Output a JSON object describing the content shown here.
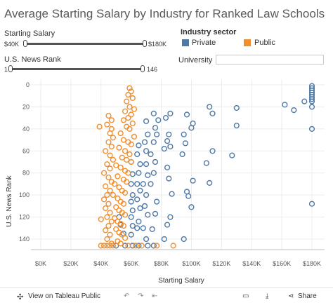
{
  "title": "Average Starting Salary by Industry for Ranked Law Schools",
  "filters": {
    "salary": {
      "label": "Starting Salary",
      "min_label": "$40K",
      "max_label": "$180K"
    },
    "rank": {
      "label": "U.S. News Rank",
      "min_label": "1",
      "max_label": "146"
    },
    "university": {
      "label": "University",
      "value": ""
    }
  },
  "legend": {
    "title": "Industry sector",
    "items": [
      {
        "label": "Private",
        "color": "#4e79a7"
      },
      {
        "label": "Public",
        "color": "#f28e2b"
      }
    ]
  },
  "footer": {
    "view_label": "View on Tableau Public",
    "share_label": "Share"
  },
  "chart_data": {
    "type": "scatter",
    "xlabel": "Starting Salary",
    "ylabel": "U.S. News Rank",
    "xlim": [
      0,
      180000
    ],
    "ylim": [
      0,
      150
    ],
    "y_reversed": true,
    "x_ticks": [
      "$0K",
      "$20K",
      "$40K",
      "$60K",
      "$80K",
      "$100K",
      "$120K",
      "$140K",
      "$160K",
      "$180K"
    ],
    "y_ticks": [
      "0",
      "20",
      "40",
      "60",
      "80",
      "100",
      "120",
      "140"
    ],
    "series": [
      {
        "name": "Private",
        "color": "#4e79a7",
        "points": [
          [
            180000,
            1
          ],
          [
            180000,
            3
          ],
          [
            180000,
            5
          ],
          [
            180000,
            7
          ],
          [
            180000,
            9
          ],
          [
            180000,
            11
          ],
          [
            180000,
            13
          ],
          [
            180000,
            15
          ],
          [
            180000,
            20
          ],
          [
            180000,
            40
          ],
          [
            180000,
            108
          ],
          [
            162000,
            18
          ],
          [
            168000,
            23
          ],
          [
            175000,
            15
          ],
          [
            112000,
            20
          ],
          [
            114000,
            26
          ],
          [
            130000,
            21
          ],
          [
            130000,
            37
          ],
          [
            127000,
            64
          ],
          [
            114000,
            60
          ],
          [
            110000,
            71
          ],
          [
            112000,
            89
          ],
          [
            97000,
            27
          ],
          [
            100000,
            39
          ],
          [
            101000,
            35
          ],
          [
            96000,
            53
          ],
          [
            95000,
            45
          ],
          [
            94000,
            63
          ],
          [
            101000,
            87
          ],
          [
            97000,
            97
          ],
          [
            98000,
            101
          ],
          [
            100000,
            111
          ],
          [
            95000,
            140
          ],
          [
            86000,
            26
          ],
          [
            83000,
            30
          ],
          [
            85000,
            45
          ],
          [
            84000,
            51
          ],
          [
            86000,
            56
          ],
          [
            82000,
            58
          ],
          [
            84000,
            75
          ],
          [
            85000,
            85
          ],
          [
            87000,
            99
          ],
          [
            86000,
            120
          ],
          [
            84000,
            127
          ],
          [
            82000,
            140
          ],
          [
            75000,
            26
          ],
          [
            78000,
            32
          ],
          [
            76000,
            39
          ],
          [
            77000,
            45
          ],
          [
            75000,
            52
          ],
          [
            73000,
            63
          ],
          [
            76000,
            70
          ],
          [
            75000,
            80
          ],
          [
            73000,
            90
          ],
          [
            77000,
            106
          ],
          [
            76000,
            117
          ],
          [
            74000,
            131
          ],
          [
            75000,
            146
          ],
          [
            70000,
            33
          ],
          [
            71000,
            45
          ],
          [
            69000,
            52
          ],
          [
            70000,
            60
          ],
          [
            70000,
            72
          ],
          [
            71000,
            82
          ],
          [
            68000,
            90
          ],
          [
            70000,
            100
          ],
          [
            69000,
            110
          ],
          [
            71000,
            118
          ],
          [
            68000,
            130
          ],
          [
            70000,
            140
          ],
          [
            71000,
            146
          ],
          [
            65000,
            55
          ],
          [
            64000,
            63
          ],
          [
            66000,
            72
          ],
          [
            65000,
            80
          ],
          [
            64000,
            90
          ],
          [
            66000,
            96
          ],
          [
            64000,
            104
          ],
          [
            66000,
            112
          ],
          [
            65000,
            124
          ],
          [
            64000,
            130
          ],
          [
            65000,
            146
          ],
          [
            60000,
            70
          ],
          [
            61000,
            81
          ],
          [
            60000,
            90
          ],
          [
            61000,
            100
          ],
          [
            60000,
            106
          ],
          [
            61000,
            114
          ],
          [
            60000,
            120
          ],
          [
            61000,
            128
          ],
          [
            60000,
            136
          ],
          [
            61000,
            146
          ],
          [
            52000,
            120
          ],
          [
            53000,
            127
          ],
          [
            55000,
            135
          ],
          [
            56000,
            146
          ],
          [
            50000,
            146
          ]
        ]
      },
      {
        "name": "Public",
        "color": "#f28e2b",
        "points": [
          [
            59000,
            3
          ],
          [
            60000,
            6
          ],
          [
            58000,
            9
          ],
          [
            61000,
            12
          ],
          [
            57000,
            15
          ],
          [
            59000,
            20
          ],
          [
            62000,
            22
          ],
          [
            56000,
            24
          ],
          [
            60000,
            27
          ],
          [
            58000,
            30
          ],
          [
            55000,
            32
          ],
          [
            61000,
            35
          ],
          [
            57000,
            38
          ],
          [
            59000,
            40
          ],
          [
            53000,
            44
          ],
          [
            62000,
            47
          ],
          [
            55000,
            50
          ],
          [
            58000,
            52
          ],
          [
            60000,
            54
          ],
          [
            52000,
            57
          ],
          [
            56000,
            60
          ],
          [
            59000,
            63
          ],
          [
            54000,
            66
          ],
          [
            57000,
            68
          ],
          [
            60000,
            70
          ],
          [
            50000,
            73
          ],
          [
            53000,
            75
          ],
          [
            56000,
            78
          ],
          [
            58000,
            80
          ],
          [
            51000,
            83
          ],
          [
            55000,
            86
          ],
          [
            57000,
            88
          ],
          [
            49000,
            90
          ],
          [
            52000,
            93
          ],
          [
            54000,
            96
          ],
          [
            56000,
            98
          ],
          [
            48000,
            100
          ],
          [
            51000,
            103
          ],
          [
            53000,
            106
          ],
          [
            55000,
            108
          ],
          [
            50000,
            111
          ],
          [
            52000,
            114
          ],
          [
            54000,
            116
          ],
          [
            56000,
            118
          ],
          [
            49000,
            121
          ],
          [
            51000,
            124
          ],
          [
            53000,
            126
          ],
          [
            55000,
            128
          ],
          [
            50000,
            131
          ],
          [
            52000,
            134
          ],
          [
            54000,
            136
          ],
          [
            56000,
            139
          ],
          [
            51000,
            142
          ],
          [
            53000,
            144
          ],
          [
            45000,
            28
          ],
          [
            47000,
            32
          ],
          [
            44000,
            36
          ],
          [
            47000,
            40
          ],
          [
            46000,
            44
          ],
          [
            48000,
            48
          ],
          [
            45000,
            52
          ],
          [
            47000,
            56
          ],
          [
            43000,
            60
          ],
          [
            46000,
            64
          ],
          [
            48000,
            68
          ],
          [
            44000,
            72
          ],
          [
            46000,
            76
          ],
          [
            42000,
            80
          ],
          [
            45000,
            84
          ],
          [
            47000,
            88
          ],
          [
            43000,
            92
          ],
          [
            46000,
            96
          ],
          [
            44000,
            100
          ],
          [
            42000,
            104
          ],
          [
            45000,
            108
          ],
          [
            43000,
            112
          ],
          [
            46000,
            116
          ],
          [
            44000,
            120
          ],
          [
            47000,
            124
          ],
          [
            45000,
            128
          ],
          [
            43000,
            132
          ],
          [
            46000,
            136
          ],
          [
            44000,
            140
          ],
          [
            47000,
            144
          ],
          [
            39000,
            38
          ],
          [
            40000,
            122
          ],
          [
            42000,
            146
          ],
          [
            44000,
            146
          ],
          [
            46000,
            146
          ],
          [
            48000,
            146
          ],
          [
            40000,
            146
          ],
          [
            58000,
            146
          ],
          [
            63000,
            146
          ],
          [
            67000,
            146
          ],
          [
            77000,
            146
          ],
          [
            88000,
            146
          ]
        ]
      }
    ]
  }
}
